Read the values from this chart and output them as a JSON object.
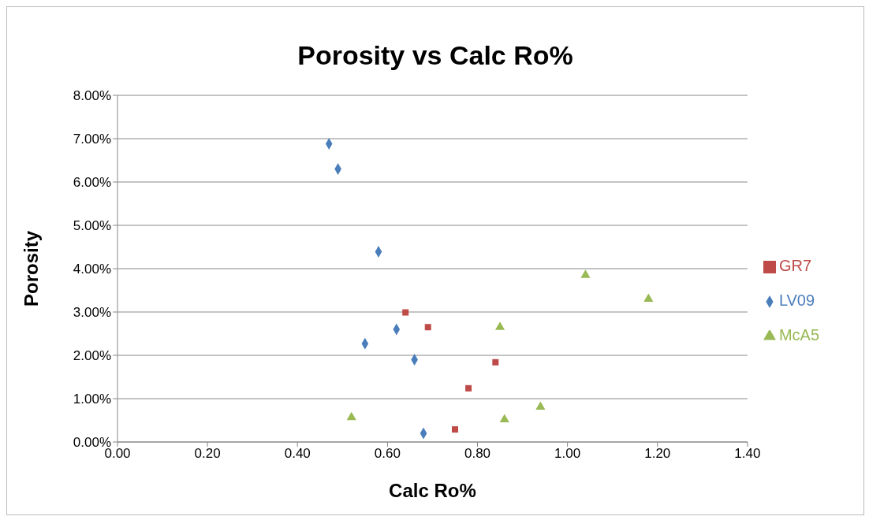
{
  "chart_data": {
    "type": "scatter",
    "title": "Porosity vs Calc Ro%",
    "xlabel": "Calc Ro%",
    "ylabel": "Porosity",
    "xlim": [
      0,
      1.4
    ],
    "xticks": [
      {
        "value": 0,
        "label": "0.00"
      },
      {
        "value": 0.2,
        "label": "0.20"
      },
      {
        "value": 0.4,
        "label": "0.40"
      },
      {
        "value": 0.6,
        "label": "0.60"
      },
      {
        "value": 0.8,
        "label": "0.80"
      },
      {
        "value": 1,
        "label": "1.00"
      },
      {
        "value": 1.2,
        "label": "1.20"
      },
      {
        "value": 1.4,
        "label": "1.40"
      }
    ],
    "ylim": [
      0,
      8
    ],
    "yticks": [
      {
        "value": 0,
        "label": "0.00%"
      },
      {
        "value": 1,
        "label": "1.00%"
      },
      {
        "value": 2,
        "label": "2.00%"
      },
      {
        "value": 3,
        "label": "3.00%"
      },
      {
        "value": 4,
        "label": "4.00%"
      },
      {
        "value": 5,
        "label": "5.00%"
      },
      {
        "value": 6,
        "label": "6.00%"
      },
      {
        "value": 7,
        "label": "7.00%"
      },
      {
        "value": 8,
        "label": "8.00%"
      }
    ],
    "grid": "y",
    "legend": "right",
    "series": [
      {
        "name": "LV09",
        "color": "#4a7ebb",
        "marker": "diamond",
        "x": [
          0.47,
          0.49,
          0.58,
          0.55,
          0.62,
          0.66,
          0.68
        ],
        "values": [
          6.88,
          6.3,
          4.39,
          2.27,
          2.6,
          1.9,
          0.2
        ]
      },
      {
        "name": "GR7",
        "color": "#be4b48",
        "marker": "square",
        "x": [
          0.64,
          0.69,
          0.84,
          0.78,
          0.75
        ],
        "values": [
          2.99,
          2.65,
          1.84,
          1.24,
          0.29
        ]
      },
      {
        "name": "McA5",
        "color": "#98b954",
        "marker": "triangle",
        "x": [
          1.04,
          1.18,
          0.85,
          0.94,
          0.52,
          0.86
        ],
        "values": [
          3.85,
          3.3,
          2.65,
          0.81,
          0.57,
          0.52
        ]
      }
    ]
  }
}
